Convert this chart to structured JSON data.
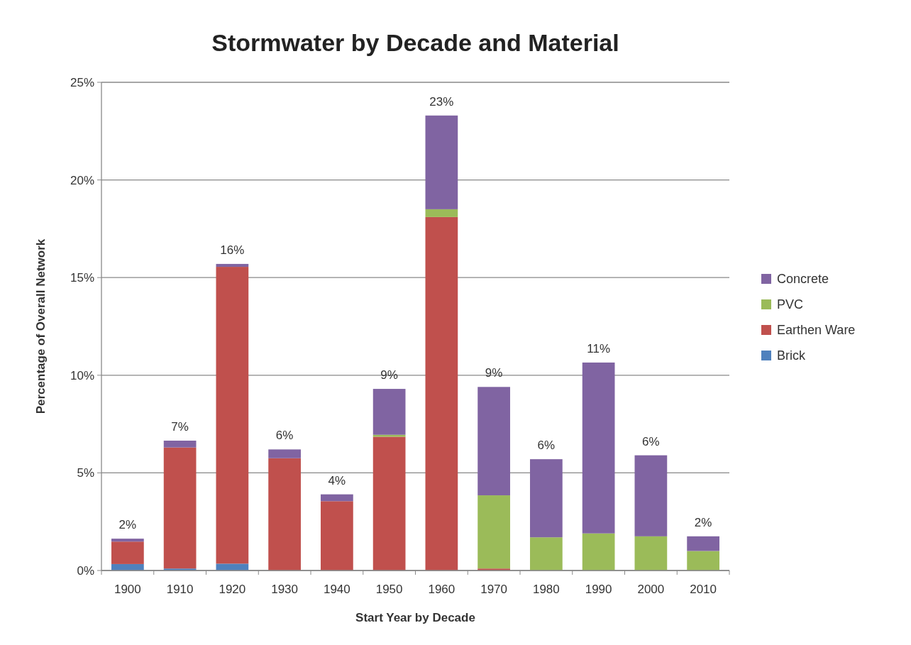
{
  "chart_data": {
    "type": "bar",
    "title": "Stormwater by Decade and Material",
    "xlabel": "Start Year by Decade",
    "ylabel": "Percentage of Overall Network",
    "categories": [
      "1900",
      "1910",
      "1920",
      "1930",
      "1940",
      "1950",
      "1960",
      "1970",
      "1980",
      "1990",
      "2000",
      "2010"
    ],
    "stacked": true,
    "series": [
      {
        "name": "Brick",
        "color": "#4f81bd",
        "values": [
          0.33,
          0.1,
          0.35,
          0,
          0,
          0,
          0,
          0,
          0,
          0,
          0,
          0
        ]
      },
      {
        "name": "Earthen Ware",
        "color": "#c0504d",
        "values": [
          1.15,
          6.2,
          15.2,
          5.75,
          3.55,
          6.85,
          18.1,
          0.1,
          0,
          0,
          0,
          0
        ]
      },
      {
        "name": "PVC",
        "color": "#9bbb59",
        "values": [
          0,
          0,
          0,
          0,
          0,
          0.1,
          0.4,
          3.75,
          1.7,
          1.9,
          1.75,
          1.0
        ]
      },
      {
        "name": "Concrete",
        "color": "#8064a2",
        "values": [
          0.15,
          0.35,
          0.15,
          0.45,
          0.35,
          2.35,
          4.8,
          5.55,
          4.0,
          8.75,
          4.15,
          0.75
        ]
      }
    ],
    "totals": [
      "2%",
      "7%",
      "16%",
      "6%",
      "4%",
      "9%",
      "23%",
      "9%",
      "6%",
      "11%",
      "6%",
      "2%"
    ],
    "ylim": [
      0,
      25
    ],
    "yticks": [
      {
        "value": 0,
        "label": "0%"
      },
      {
        "value": 5,
        "label": "5%"
      },
      {
        "value": 10,
        "label": "10%"
      },
      {
        "value": 15,
        "label": "15%"
      },
      {
        "value": 20,
        "label": "20%"
      },
      {
        "value": 25,
        "label": "25%"
      }
    ],
    "grid": "y",
    "legend": "right"
  }
}
